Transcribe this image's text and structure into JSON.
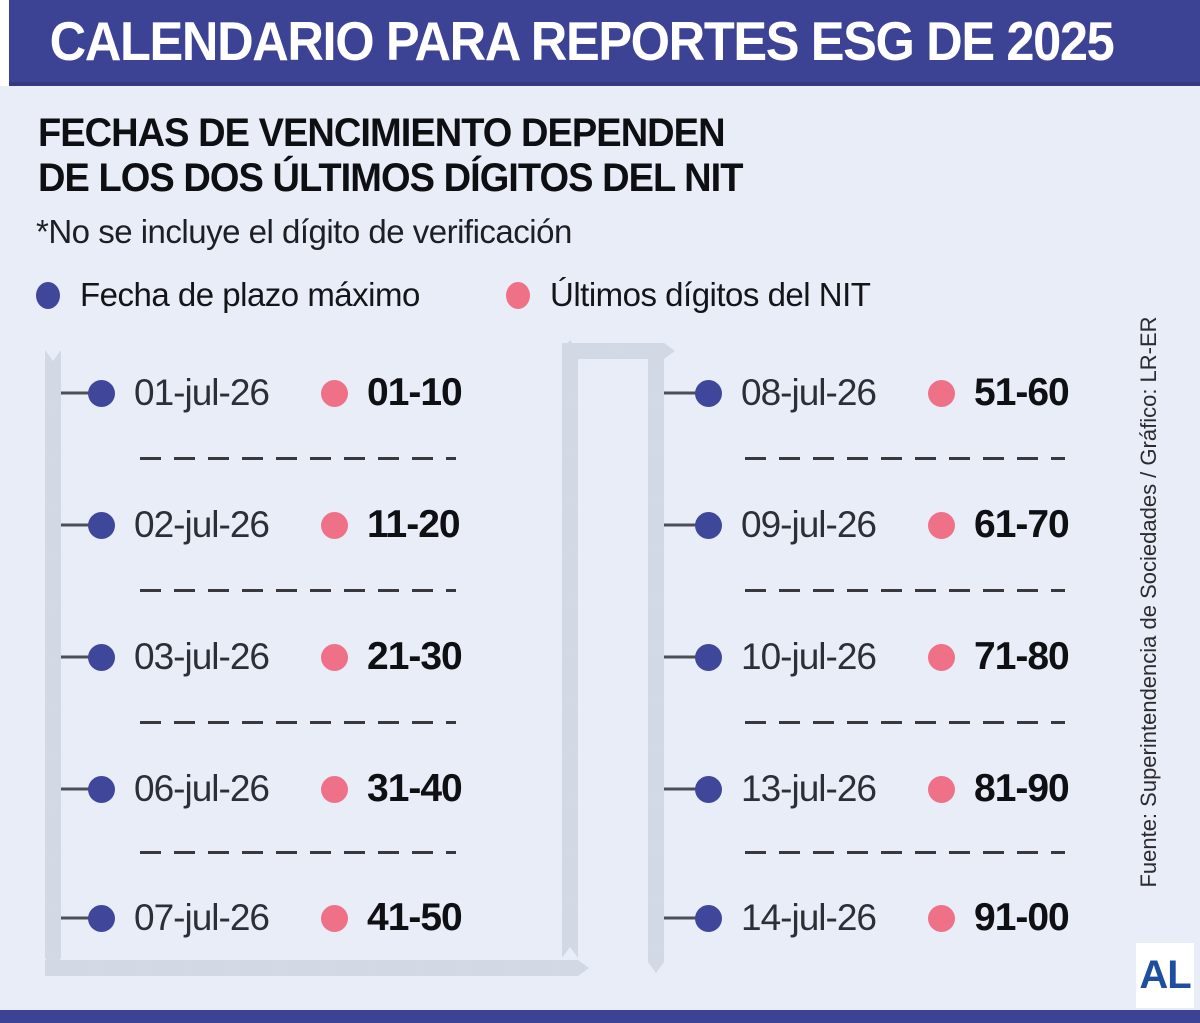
{
  "header": {
    "title": "CALENDARIO PARA REPORTES ESG DE 2025"
  },
  "subtitle": {
    "line1": "FECHAS DE VENCIMIENTO DEPENDEN",
    "line2": "DE LOS DOS ÚLTIMOS DÍGITOS DEL NIT"
  },
  "note": "*No se incluye el dígito de verificación",
  "legend": [
    {
      "label": "Fecha de plazo máximo",
      "icon": "blue-dot",
      "color": "#3E479A"
    },
    {
      "label": "Últimos dígitos del NIT",
      "icon": "pink-dot",
      "color": "#EE7188"
    }
  ],
  "columns": [
    {
      "rows": [
        {
          "date": "01-jul-26",
          "nit": "01-10"
        },
        {
          "date": "02-jul-26",
          "nit": "11-20"
        },
        {
          "date": "03-jul-26",
          "nit": "21-30"
        },
        {
          "date": "06-jul-26",
          "nit": "31-40"
        },
        {
          "date": "07-jul-26",
          "nit": "41-50"
        }
      ]
    },
    {
      "rows": [
        {
          "date": "08-jul-26",
          "nit": "51-60"
        },
        {
          "date": "09-jul-26",
          "nit": "61-70"
        },
        {
          "date": "10-jul-26",
          "nit": "71-80"
        },
        {
          "date": "13-jul-26",
          "nit": "81-90"
        },
        {
          "date": "14-jul-26",
          "nit": "91-00"
        }
      ]
    }
  ],
  "source": "Fuente: Superintendencia de Sociedades / Gráfico: LR-ER",
  "logo": "AL",
  "colors": {
    "header_bg": "#3D4394",
    "background": "#E9EDF8",
    "date_dot": "#3E479A",
    "nit_dot": "#EE7188",
    "track": "#D3D9E4",
    "logo_blue": "#1D4F9E"
  },
  "chart_data": {
    "type": "table",
    "title": "CALENDARIO PARA REPORTES ESG DE 2025",
    "columns": [
      "Fecha de plazo máximo",
      "Últimos dígitos del NIT"
    ],
    "rows": [
      [
        "01-jul-26",
        "01-10"
      ],
      [
        "02-jul-26",
        "11-20"
      ],
      [
        "03-jul-26",
        "21-30"
      ],
      [
        "06-jul-26",
        "31-40"
      ],
      [
        "07-jul-26",
        "41-50"
      ],
      [
        "08-jul-26",
        "51-60"
      ],
      [
        "09-jul-26",
        "61-70"
      ],
      [
        "10-jul-26",
        "71-80"
      ],
      [
        "13-jul-26",
        "81-90"
      ],
      [
        "14-jul-26",
        "91-00"
      ]
    ]
  }
}
